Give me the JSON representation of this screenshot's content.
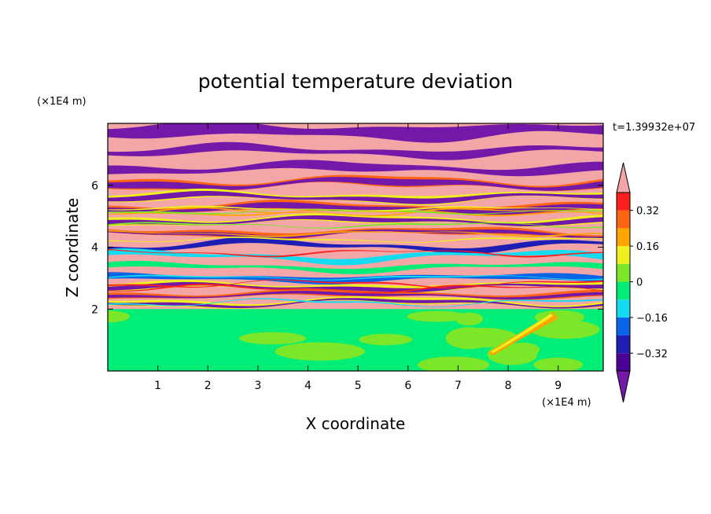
{
  "chart_data": {
    "type": "heatmap",
    "title": "potential temperature deviation",
    "xlabel": "X coordinate",
    "ylabel": "Z coordinate",
    "x_unit": "(×1E4 m)",
    "y_unit": "(×1E4 m)",
    "time_label": "t=1.39932e+07",
    "x_ticks": [
      "1",
      "2",
      "3",
      "4",
      "5",
      "6",
      "7",
      "8",
      "9"
    ],
    "y_ticks": [
      "2",
      "4",
      "6"
    ],
    "xlim": [
      0,
      9.9
    ],
    "ylim": [
      0,
      8
    ],
    "colorbar": {
      "tick_labels": [
        "0.32",
        "0.16",
        "0",
        "−0.16",
        "−0.32"
      ],
      "tick_values": [
        0.32,
        0.16,
        0,
        -0.16,
        -0.32
      ],
      "levels": [
        -0.4,
        -0.32,
        -0.24,
        -0.16,
        -0.08,
        0,
        0.08,
        0.16,
        0.24,
        0.32,
        0.4
      ],
      "colors": [
        "#4b0096",
        "#1e1eb4",
        "#0a64e6",
        "#14dcf0",
        "#00ee78",
        "#7ce628",
        "#f0f01e",
        "#ffa500",
        "#ff6414",
        "#ff1e1e"
      ],
      "under_color": "#7318a8",
      "over_color": "#f4a6a6"
    },
    "field_description": {
      "lower_layer_z_top": 2,
      "lower_layer_values": "mostly 0 to -0.08 with patches 0 to 0.08",
      "upper_layers": "alternating horizontal bands between below -0.4 and above 0.4"
    }
  }
}
